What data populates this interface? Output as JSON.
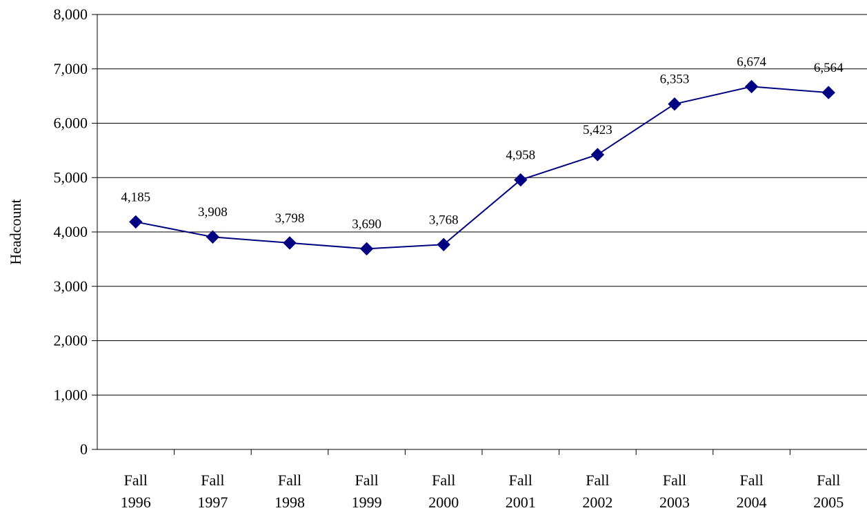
{
  "chart_data": {
    "type": "line",
    "title": "",
    "xlabel": "",
    "ylabel": "Headcount",
    "categories": [
      [
        "Fall",
        "1996"
      ],
      [
        "Fall",
        "1997"
      ],
      [
        "Fall",
        "1998"
      ],
      [
        "Fall",
        "1999"
      ],
      [
        "Fall",
        "2000"
      ],
      [
        "Fall",
        "2001"
      ],
      [
        "Fall",
        "2002"
      ],
      [
        "Fall",
        "2003"
      ],
      [
        "Fall",
        "2004"
      ],
      [
        "Fall",
        "2005"
      ]
    ],
    "series": [
      {
        "values": [
          4185,
          3908,
          3798,
          3690,
          3768,
          4958,
          5423,
          6353,
          6674,
          6564
        ],
        "value_labels": [
          "4,185",
          "3,908",
          "3,798",
          "3,690",
          "3,768",
          "4,958",
          "5,423",
          "6,353",
          "6,674",
          "6,564"
        ],
        "color": "#000080",
        "marker": "diamond"
      }
    ],
    "ylim": [
      0,
      8000
    ],
    "yticks": [
      0,
      1000,
      2000,
      3000,
      4000,
      5000,
      6000,
      7000,
      8000
    ],
    "ytick_labels": [
      "0",
      "1,000",
      "2,000",
      "3,000",
      "4,000",
      "5,000",
      "6,000",
      "7,000",
      "8,000"
    ],
    "grid": true,
    "legend": "none"
  }
}
